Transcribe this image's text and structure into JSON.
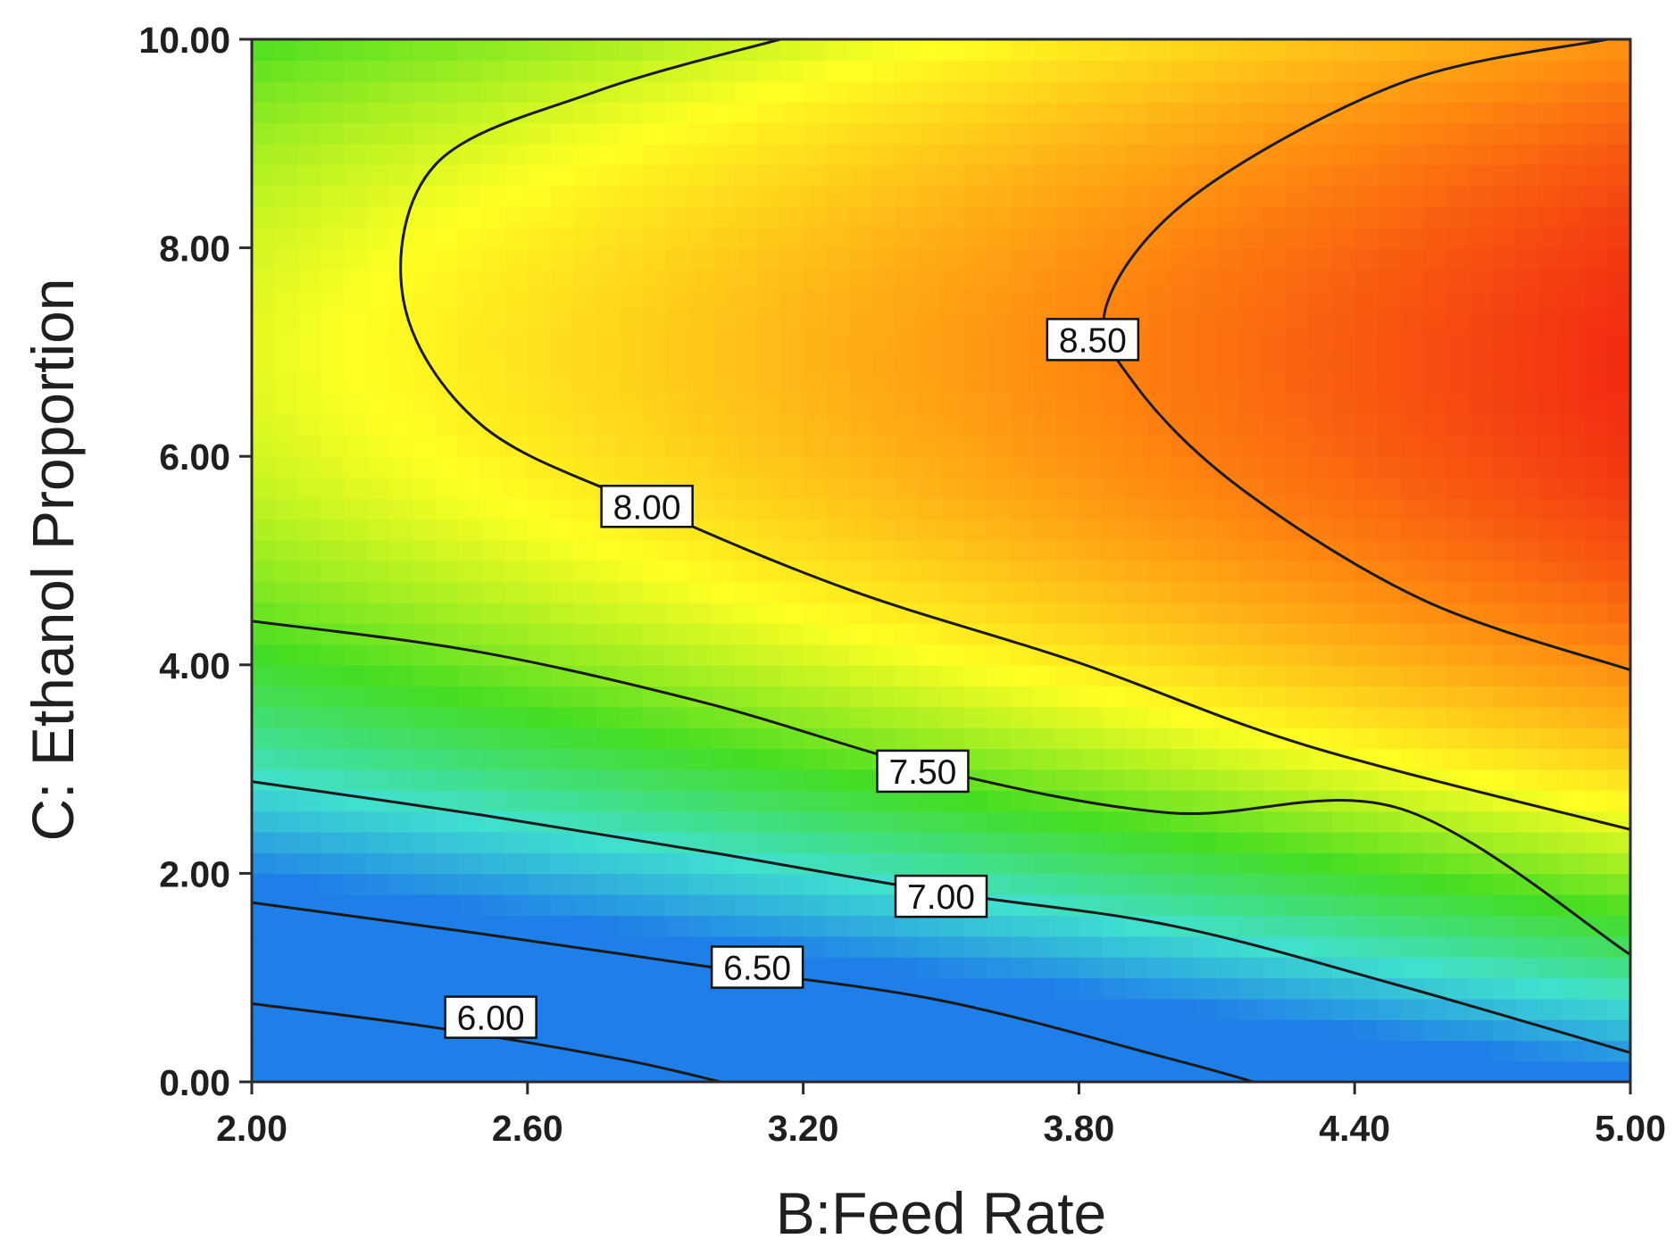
{
  "chart_data": {
    "type": "heatmap",
    "subtype": "contour",
    "xlabel": "B:Feed Rate",
    "ylabel": "C: Ethanol Proportion",
    "xlim": [
      2.0,
      5.0
    ],
    "ylim": [
      0.0,
      10.0
    ],
    "x_ticks": [
      "2.00",
      "2.60",
      "3.20",
      "3.80",
      "4.40",
      "5.00"
    ],
    "y_ticks": [
      "0.00",
      "2.00",
      "4.00",
      "6.00",
      "8.00",
      "10.00"
    ],
    "colorscale": [
      "#1f7fe8",
      "#40e0d0",
      "#44dd22",
      "#ffff22",
      "#ff8a10",
      "#ee1111"
    ],
    "response_range": [
      5.4,
      9.0
    ],
    "grid": false,
    "legend": "none",
    "contours": [
      {
        "level": 6.0,
        "label": "6.00",
        "label_at": [
          2.52,
          0.62
        ],
        "points": [
          [
            2.0,
            0.75
          ],
          [
            2.4,
            0.52
          ],
          [
            2.8,
            0.22
          ],
          [
            3.02,
            0.0
          ]
        ]
      },
      {
        "level": 6.5,
        "label": "6.50",
        "label_at": [
          3.1,
          1.1
        ],
        "points": [
          [
            2.0,
            1.72
          ],
          [
            2.5,
            1.42
          ],
          [
            3.0,
            1.1
          ],
          [
            3.5,
            0.78
          ],
          [
            4.0,
            0.22
          ],
          [
            4.18,
            0.0
          ]
        ]
      },
      {
        "level": 7.0,
        "label": "7.00",
        "label_at": [
          3.5,
          1.78
        ],
        "points": [
          [
            2.0,
            2.88
          ],
          [
            2.5,
            2.56
          ],
          [
            3.0,
            2.2
          ],
          [
            3.5,
            1.82
          ],
          [
            4.0,
            1.5
          ],
          [
            4.5,
            0.92
          ],
          [
            5.0,
            0.28
          ]
        ]
      },
      {
        "level": 7.5,
        "label": "7.50",
        "label_at": [
          3.46,
          2.98
        ],
        "points": [
          [
            2.0,
            4.42
          ],
          [
            2.5,
            4.12
          ],
          [
            3.0,
            3.62
          ],
          [
            3.5,
            2.98
          ],
          [
            4.0,
            2.58
          ],
          [
            4.5,
            2.62
          ],
          [
            5.0,
            1.22
          ]
        ]
      },
      {
        "level": 8.0,
        "label": "8.00",
        "label_at": [
          2.86,
          5.52
        ],
        "points": [
          [
            3.15,
            10.0
          ],
          [
            2.75,
            9.5
          ],
          [
            2.4,
            8.8
          ],
          [
            2.33,
            7.5
          ],
          [
            2.5,
            6.3
          ],
          [
            2.86,
            5.52
          ],
          [
            3.3,
            4.72
          ],
          [
            3.8,
            4.02
          ],
          [
            4.3,
            3.22
          ],
          [
            5.0,
            2.42
          ]
        ]
      },
      {
        "level": 8.5,
        "label": "8.50",
        "label_at": [
          3.83,
          7.12
        ],
        "points": [
          [
            4.95,
            10.0
          ],
          [
            4.5,
            9.58
          ],
          [
            4.05,
            8.5
          ],
          [
            3.86,
            7.45
          ],
          [
            3.92,
            6.7
          ],
          [
            4.15,
            5.7
          ],
          [
            4.55,
            4.62
          ],
          [
            5.0,
            3.95
          ]
        ]
      }
    ]
  }
}
